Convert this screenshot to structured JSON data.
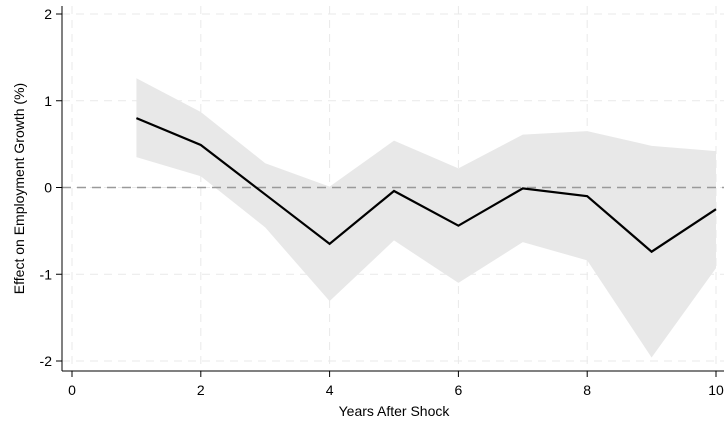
{
  "chart_data": {
    "type": "line",
    "title": "",
    "xlabel": "Years After Shock",
    "ylabel": "Effect on Employment Growth (%)",
    "xlim": [
      0,
      10
    ],
    "ylim": [
      -2,
      2
    ],
    "x_ticks": [
      0,
      2,
      4,
      6,
      8,
      10
    ],
    "y_ticks": [
      -2,
      -1,
      0,
      1,
      2
    ],
    "grid": true,
    "reference_line": {
      "y": 0,
      "style": "dashed"
    },
    "series": [
      {
        "x": [
          1,
          2,
          3,
          4,
          5,
          6,
          7,
          8,
          9,
          10
        ],
        "values": [
          0.8,
          0.49,
          -0.08,
          -0.65,
          -0.04,
          -0.44,
          -0.01,
          -0.1,
          -0.74,
          -0.25
        ],
        "lower": [
          0.35,
          0.13,
          -0.46,
          -1.31,
          -0.61,
          -1.1,
          -0.63,
          -0.84,
          -1.96,
          -0.93
        ],
        "upper": [
          1.26,
          0.87,
          0.28,
          0.01,
          0.54,
          0.22,
          0.61,
          0.65,
          0.48,
          0.42
        ]
      }
    ],
    "colors": {
      "line": "#000000",
      "band": "#e8e8e8",
      "grid": "#e9e9e9",
      "zero": "#9a9a9a"
    }
  }
}
